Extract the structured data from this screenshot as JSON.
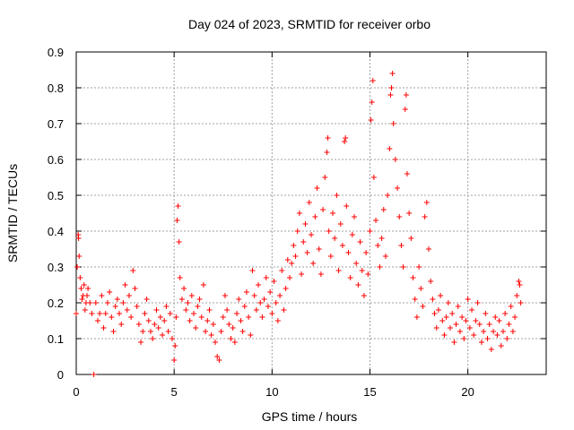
{
  "chart_data": {
    "type": "scatter",
    "title": "Day 024 of 2023, SRMTID for receiver orbo",
    "xlabel": "GPS time / hours",
    "ylabel": "SRMTID / TECUs",
    "xlim": [
      0,
      24
    ],
    "ylim": [
      0,
      0.9
    ],
    "xticks": [
      0,
      5,
      10,
      15,
      20
    ],
    "xtick_labels": [
      "0",
      "5",
      "10",
      "15",
      "20"
    ],
    "yticks": [
      0,
      0.1,
      0.2,
      0.3,
      0.4,
      0.5,
      0.6,
      0.7,
      0.8,
      0.9
    ],
    "ytick_labels": [
      "0",
      "0.1",
      "0.2",
      "0.3",
      "0.4",
      "0.5",
      "0.6",
      "0.7",
      "0.8",
      "0.9"
    ],
    "grid": true,
    "marker": "+",
    "marker_color": "#ff0000",
    "series": [
      {
        "name": "SRMTID",
        "color": "#ff0000",
        "points": [
          [
            0.0,
            0.17
          ],
          [
            0.05,
            0.3
          ],
          [
            0.1,
            0.39
          ],
          [
            0.12,
            0.38
          ],
          [
            0.15,
            0.33
          ],
          [
            0.2,
            0.27
          ],
          [
            0.25,
            0.24
          ],
          [
            0.3,
            0.21
          ],
          [
            0.35,
            0.22
          ],
          [
            0.4,
            0.25
          ],
          [
            0.45,
            0.18
          ],
          [
            0.5,
            0.2
          ],
          [
            0.55,
            0.22
          ],
          [
            0.6,
            0.24
          ],
          [
            0.7,
            0.2
          ],
          [
            0.8,
            0.17
          ],
          [
            0.9,
            0.0
          ],
          [
            1.0,
            0.2
          ],
          [
            1.1,
            0.15
          ],
          [
            1.2,
            0.17
          ],
          [
            1.3,
            0.22
          ],
          [
            1.4,
            0.13
          ],
          [
            1.5,
            0.17
          ],
          [
            1.6,
            0.2
          ],
          [
            1.7,
            0.23
          ],
          [
            1.8,
            0.16
          ],
          [
            1.9,
            0.12
          ],
          [
            2.0,
            0.19
          ],
          [
            2.1,
            0.21
          ],
          [
            2.2,
            0.17
          ],
          [
            2.3,
            0.14
          ],
          [
            2.4,
            0.2
          ],
          [
            2.5,
            0.25
          ],
          [
            2.6,
            0.18
          ],
          [
            2.7,
            0.22
          ],
          [
            2.8,
            0.16
          ],
          [
            2.9,
            0.29
          ],
          [
            3.0,
            0.24
          ],
          [
            3.1,
            0.19
          ],
          [
            3.2,
            0.14
          ],
          [
            3.3,
            0.09
          ],
          [
            3.4,
            0.12
          ],
          [
            3.5,
            0.17
          ],
          [
            3.6,
            0.21
          ],
          [
            3.7,
            0.15
          ],
          [
            3.8,
            0.12
          ],
          [
            3.9,
            0.1
          ],
          [
            4.0,
            0.14
          ],
          [
            4.1,
            0.18
          ],
          [
            4.2,
            0.13
          ],
          [
            4.3,
            0.16
          ],
          [
            4.4,
            0.11
          ],
          [
            4.5,
            0.15
          ],
          [
            4.6,
            0.19
          ],
          [
            4.7,
            0.12
          ],
          [
            4.8,
            0.17
          ],
          [
            4.9,
            0.1
          ],
          [
            5.0,
            0.04
          ],
          [
            5.05,
            0.08
          ],
          [
            5.1,
            0.16
          ],
          [
            5.15,
            0.43
          ],
          [
            5.2,
            0.47
          ],
          [
            5.25,
            0.37
          ],
          [
            5.3,
            0.27
          ],
          [
            5.4,
            0.21
          ],
          [
            5.5,
            0.24
          ],
          [
            5.6,
            0.18
          ],
          [
            5.7,
            0.2
          ],
          [
            5.8,
            0.15
          ],
          [
            5.9,
            0.22
          ],
          [
            6.0,
            0.17
          ],
          [
            6.1,
            0.13
          ],
          [
            6.2,
            0.19
          ],
          [
            6.3,
            0.21
          ],
          [
            6.4,
            0.16
          ],
          [
            6.5,
            0.25
          ],
          [
            6.6,
            0.12
          ],
          [
            6.7,
            0.15
          ],
          [
            6.8,
            0.18
          ],
          [
            6.9,
            0.11
          ],
          [
            7.0,
            0.14
          ],
          [
            7.1,
            0.09
          ],
          [
            7.2,
            0.05
          ],
          [
            7.3,
            0.04
          ],
          [
            7.4,
            0.12
          ],
          [
            7.5,
            0.16
          ],
          [
            7.6,
            0.22
          ],
          [
            7.7,
            0.18
          ],
          [
            7.8,
            0.14
          ],
          [
            7.9,
            0.1
          ],
          [
            8.0,
            0.13
          ],
          [
            8.1,
            0.09
          ],
          [
            8.2,
            0.17
          ],
          [
            8.3,
            0.21
          ],
          [
            8.4,
            0.15
          ],
          [
            8.5,
            0.12
          ],
          [
            8.6,
            0.19
          ],
          [
            8.7,
            0.23
          ],
          [
            8.8,
            0.16
          ],
          [
            8.9,
            0.11
          ],
          [
            9.0,
            0.29
          ],
          [
            9.1,
            0.22
          ],
          [
            9.2,
            0.18
          ],
          [
            9.3,
            0.25
          ],
          [
            9.4,
            0.2
          ],
          [
            9.5,
            0.16
          ],
          [
            9.6,
            0.21
          ],
          [
            9.7,
            0.27
          ],
          [
            9.8,
            0.19
          ],
          [
            9.9,
            0.23
          ],
          [
            10.0,
            0.17
          ],
          [
            10.1,
            0.26
          ],
          [
            10.2,
            0.2
          ],
          [
            10.3,
            0.15
          ],
          [
            10.4,
            0.22
          ],
          [
            10.5,
            0.29
          ],
          [
            10.6,
            0.18
          ],
          [
            10.7,
            0.24
          ],
          [
            10.8,
            0.32
          ],
          [
            10.9,
            0.27
          ],
          [
            11.0,
            0.31
          ],
          [
            11.1,
            0.36
          ],
          [
            11.2,
            0.33
          ],
          [
            11.3,
            0.4
          ],
          [
            11.4,
            0.45
          ],
          [
            11.5,
            0.28
          ],
          [
            11.6,
            0.37
          ],
          [
            11.7,
            0.42
          ],
          [
            11.8,
            0.34
          ],
          [
            11.9,
            0.48
          ],
          [
            12.0,
            0.39
          ],
          [
            12.1,
            0.31
          ],
          [
            12.2,
            0.44
          ],
          [
            12.3,
            0.52
          ],
          [
            12.4,
            0.35
          ],
          [
            12.5,
            0.28
          ],
          [
            12.6,
            0.46
          ],
          [
            12.7,
            0.55
          ],
          [
            12.8,
            0.62
          ],
          [
            12.85,
            0.66
          ],
          [
            12.9,
            0.4
          ],
          [
            13.0,
            0.33
          ],
          [
            13.1,
            0.45
          ],
          [
            13.2,
            0.38
          ],
          [
            13.3,
            0.5
          ],
          [
            13.4,
            0.29
          ],
          [
            13.5,
            0.42
          ],
          [
            13.6,
            0.36
          ],
          [
            13.7,
            0.65
          ],
          [
            13.75,
            0.66
          ],
          [
            13.8,
            0.47
          ],
          [
            13.9,
            0.34
          ],
          [
            14.0,
            0.27
          ],
          [
            14.1,
            0.39
          ],
          [
            14.2,
            0.44
          ],
          [
            14.3,
            0.31
          ],
          [
            14.4,
            0.25
          ],
          [
            14.5,
            0.37
          ],
          [
            14.6,
            0.29
          ],
          [
            14.7,
            0.22
          ],
          [
            14.8,
            0.34
          ],
          [
            14.9,
            0.28
          ],
          [
            15.0,
            0.4
          ],
          [
            15.05,
            0.71
          ],
          [
            15.1,
            0.76
          ],
          [
            15.15,
            0.82
          ],
          [
            15.2,
            0.55
          ],
          [
            15.3,
            0.43
          ],
          [
            15.4,
            0.36
          ],
          [
            15.5,
            0.3
          ],
          [
            15.6,
            0.38
          ],
          [
            15.7,
            0.46
          ],
          [
            15.8,
            0.33
          ],
          [
            15.9,
            0.5
          ],
          [
            16.0,
            0.63
          ],
          [
            16.05,
            0.78
          ],
          [
            16.1,
            0.8
          ],
          [
            16.15,
            0.84
          ],
          [
            16.2,
            0.7
          ],
          [
            16.3,
            0.6
          ],
          [
            16.4,
            0.52
          ],
          [
            16.5,
            0.44
          ],
          [
            16.6,
            0.36
          ],
          [
            16.7,
            0.3
          ],
          [
            16.8,
            0.74
          ],
          [
            16.85,
            0.78
          ],
          [
            16.9,
            0.56
          ],
          [
            17.0,
            0.45
          ],
          [
            17.1,
            0.38
          ],
          [
            17.2,
            0.27
          ],
          [
            17.3,
            0.21
          ],
          [
            17.4,
            0.16
          ],
          [
            17.5,
            0.3
          ],
          [
            17.6,
            0.24
          ],
          [
            17.7,
            0.19
          ],
          [
            17.8,
            0.44
          ],
          [
            17.9,
            0.48
          ],
          [
            18.0,
            0.35
          ],
          [
            18.1,
            0.26
          ],
          [
            18.2,
            0.21
          ],
          [
            18.3,
            0.17
          ],
          [
            18.4,
            0.13
          ],
          [
            18.5,
            0.18
          ],
          [
            18.6,
            0.22
          ],
          [
            18.7,
            0.15
          ],
          [
            18.8,
            0.11
          ],
          [
            18.9,
            0.16
          ],
          [
            19.0,
            0.2
          ],
          [
            19.1,
            0.13
          ],
          [
            19.2,
            0.17
          ],
          [
            19.3,
            0.09
          ],
          [
            19.4,
            0.14
          ],
          [
            19.5,
            0.19
          ],
          [
            19.6,
            0.12
          ],
          [
            19.7,
            0.16
          ],
          [
            19.8,
            0.1
          ],
          [
            19.9,
            0.15
          ],
          [
            20.0,
            0.21
          ],
          [
            20.1,
            0.13
          ],
          [
            20.2,
            0.18
          ],
          [
            20.3,
            0.11
          ],
          [
            20.4,
            0.15
          ],
          [
            20.5,
            0.2
          ],
          [
            20.6,
            0.14
          ],
          [
            20.7,
            0.09
          ],
          [
            20.8,
            0.12
          ],
          [
            20.9,
            0.17
          ],
          [
            21.0,
            0.1
          ],
          [
            21.1,
            0.14
          ],
          [
            21.2,
            0.07
          ],
          [
            21.3,
            0.12
          ],
          [
            21.4,
            0.16
          ],
          [
            21.5,
            0.11
          ],
          [
            21.6,
            0.15
          ],
          [
            21.7,
            0.08
          ],
          [
            21.8,
            0.12
          ],
          [
            21.9,
            0.17
          ],
          [
            22.0,
            0.1
          ],
          [
            22.1,
            0.14
          ],
          [
            22.2,
            0.19
          ],
          [
            22.3,
            0.12
          ],
          [
            22.4,
            0.16
          ],
          [
            22.5,
            0.22
          ],
          [
            22.6,
            0.26
          ],
          [
            22.65,
            0.25
          ],
          [
            22.7,
            0.2
          ]
        ]
      }
    ]
  }
}
